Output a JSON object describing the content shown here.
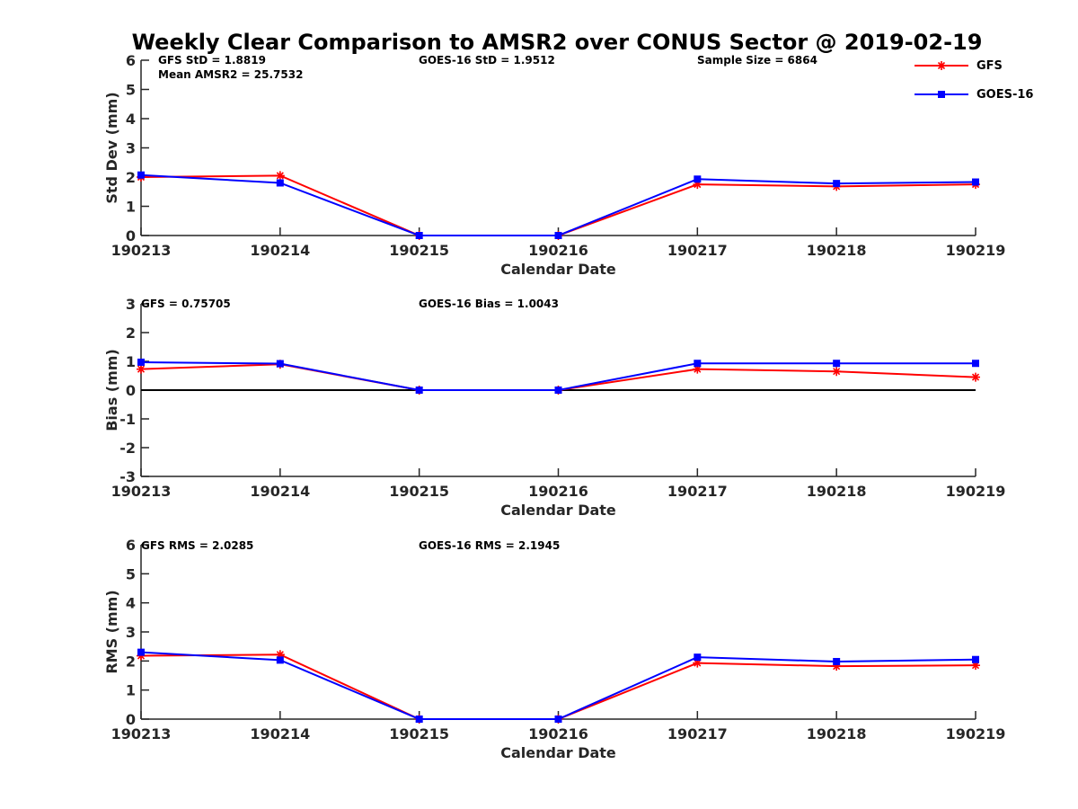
{
  "title": "Weekly Clear Comparison to AMSR2 over CONUS Sector @ 2019-02-19",
  "colors": {
    "GFS": "#ff0000",
    "GOES-16": "#0000ff",
    "axis": "#262626"
  },
  "legend": {
    "placement": "top-right",
    "entries": [
      {
        "name": "GFS",
        "marker": "asterisk"
      },
      {
        "name": "GOES-16",
        "marker": "square"
      }
    ]
  },
  "chart_data": [
    {
      "type": "line",
      "x": [
        "190213",
        "190214",
        "190215",
        "190216",
        "190217",
        "190218",
        "190219"
      ],
      "xlabel": "Calendar Date",
      "ylabel": "Std Dev (mm)",
      "ylim": [
        0,
        6
      ],
      "yticks": [
        "0",
        "1",
        "2",
        "3",
        "4",
        "5",
        "6"
      ],
      "zero_line": false,
      "series": [
        {
          "name": "GFS",
          "values": [
            2.0,
            2.05,
            0.0,
            0.0,
            1.75,
            1.68,
            1.75
          ]
        },
        {
          "name": "GOES-16",
          "values": [
            2.07,
            1.8,
            0.0,
            0.0,
            1.93,
            1.78,
            1.83
          ]
        }
      ],
      "annotations": [
        {
          "id": "gfs_std",
          "text": "GFS StD = 1.8819"
        },
        {
          "id": "mean_amsr2",
          "text": "Mean AMSR2 = 25.7532"
        },
        {
          "id": "goes_std",
          "text": "GOES-16 StD = 1.9512"
        },
        {
          "id": "sample",
          "text": "Sample Size = 6864"
        }
      ]
    },
    {
      "type": "line",
      "x": [
        "190213",
        "190214",
        "190215",
        "190216",
        "190217",
        "190218",
        "190219"
      ],
      "xlabel": "Calendar Date",
      "ylabel": "Bias (mm)",
      "ylim": [
        -3,
        3
      ],
      "yticks": [
        "-3",
        "-2",
        "-1",
        "0",
        "1",
        "2",
        "3"
      ],
      "zero_line": true,
      "series": [
        {
          "name": "GFS",
          "values": [
            0.73,
            0.9,
            0.0,
            0.0,
            0.73,
            0.65,
            0.45
          ]
        },
        {
          "name": "GOES-16",
          "values": [
            0.97,
            0.92,
            0.0,
            0.0,
            0.93,
            0.93,
            0.93
          ]
        }
      ],
      "annotations": [
        {
          "id": "gfs_bias",
          "text": "GFS = 0.75705"
        },
        {
          "id": "goes_bias",
          "text": "GOES-16 Bias  = 1.0043"
        }
      ]
    },
    {
      "type": "line",
      "x": [
        "190213",
        "190214",
        "190215",
        "190216",
        "190217",
        "190218",
        "190219"
      ],
      "xlabel": "Calendar Date",
      "ylabel": "RMS (mm)",
      "ylim": [
        0,
        6
      ],
      "yticks": [
        "0",
        "1",
        "2",
        "3",
        "4",
        "5",
        "6"
      ],
      "zero_line": false,
      "series": [
        {
          "name": "GFS",
          "values": [
            2.18,
            2.22,
            0.0,
            0.0,
            1.93,
            1.82,
            1.85
          ]
        },
        {
          "name": "GOES-16",
          "values": [
            2.3,
            2.03,
            0.0,
            0.0,
            2.13,
            1.98,
            2.05
          ]
        }
      ],
      "annotations": [
        {
          "id": "gfs_rms",
          "text": "GFS RMS = 2.0285"
        },
        {
          "id": "goes_rms",
          "text": "GOES-16 RMS = 2.1945"
        }
      ]
    }
  ]
}
